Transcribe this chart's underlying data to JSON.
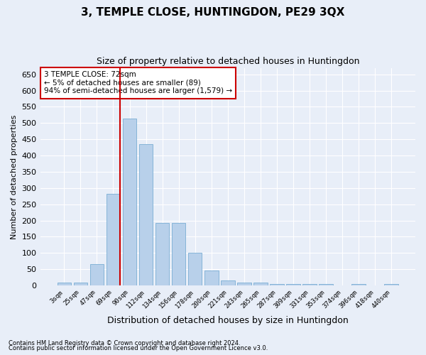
{
  "title": "3, TEMPLE CLOSE, HUNTINGDON, PE29 3QX",
  "subtitle": "Size of property relative to detached houses in Huntingdon",
  "xlabel": "Distribution of detached houses by size in Huntingdon",
  "ylabel": "Number of detached properties",
  "categories": [
    "3sqm",
    "25sqm",
    "47sqm",
    "69sqm",
    "90sqm",
    "112sqm",
    "134sqm",
    "156sqm",
    "178sqm",
    "200sqm",
    "221sqm",
    "243sqm",
    "265sqm",
    "287sqm",
    "309sqm",
    "331sqm",
    "353sqm",
    "374sqm",
    "396sqm",
    "418sqm",
    "440sqm"
  ],
  "values": [
    10,
    10,
    65,
    283,
    513,
    435,
    192,
    192,
    100,
    46,
    15,
    10,
    10,
    5,
    5,
    5,
    5,
    0,
    4,
    0,
    4
  ],
  "bar_color": "#b8d0ea",
  "bar_edge_color": "#7aadd4",
  "vline_index": 3,
  "vline_color": "#cc0000",
  "ylim": [
    0,
    670
  ],
  "annotation_text": "3 TEMPLE CLOSE: 72sqm\n← 5% of detached houses are smaller (89)\n94% of semi-detached houses are larger (1,579) →",
  "annotation_box_color": "#ffffff",
  "annotation_box_edge": "#cc0000",
  "footer1": "Contains HM Land Registry data © Crown copyright and database right 2024.",
  "footer2": "Contains public sector information licensed under the Open Government Licence v3.0.",
  "background_color": "#e8eef8",
  "plot_background": "#e8eef8",
  "grid_color": "#ffffff",
  "title_fontsize": 11,
  "subtitle_fontsize": 9,
  "xlabel_fontsize": 9,
  "ylabel_fontsize": 8
}
